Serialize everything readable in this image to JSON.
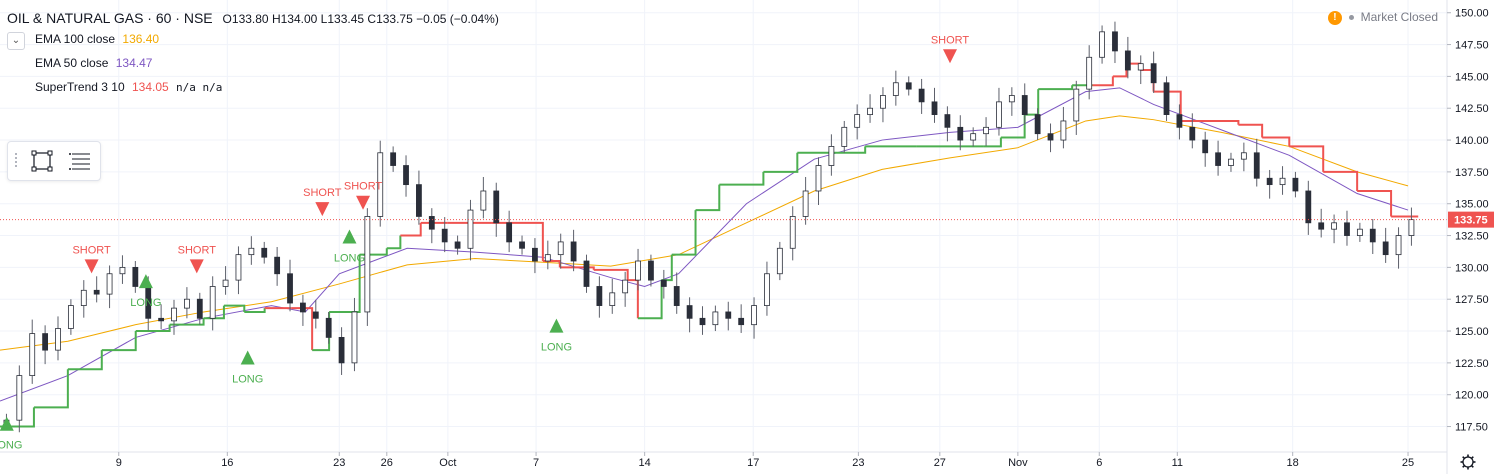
{
  "legend": {
    "title": "OIL & NATURAL GAS · 60 · NSE",
    "ohlc": {
      "o_label": "O",
      "o": "133.80",
      "h_label": "H",
      "h": "134.00",
      "l_label": "L",
      "l": "133.45",
      "c_label": "C",
      "c": "133.75",
      "change": "−0.05 (−0.04%)"
    },
    "indicators": [
      {
        "name": "EMA 100 close",
        "value": "136.40",
        "color": "#f2a900"
      },
      {
        "name": "EMA 50 close",
        "value": "134.47",
        "color": "#7e57c2"
      },
      {
        "name": "SuperTrend 3 10",
        "value": "134.05",
        "extra": "n/a n/a",
        "color": "#ef5350"
      }
    ],
    "collapse_icon": "chevron-down-icon"
  },
  "status": {
    "alert_icon": "!",
    "text": "Market Closed"
  },
  "toolbar": {
    "icons": [
      "rectangle-select-icon",
      "menu-lines-icon"
    ]
  },
  "colors": {
    "up": "#26a69a",
    "down": "#ef5350",
    "st_up": "#4caf50",
    "st_down": "#ef5350",
    "ema100": "#f2a900",
    "ema50": "#7e57c2",
    "grid": "#f0f3fa"
  },
  "chart_data": {
    "type": "line",
    "title": "OIL & NATURAL GAS · 60 · NSE",
    "ylim": [
      115.5,
      151
    ],
    "y_ticks": [
      117.5,
      120.0,
      122.5,
      125.0,
      127.5,
      130.0,
      132.5,
      135.0,
      137.5,
      140.0,
      142.5,
      145.0,
      147.5,
      150.0
    ],
    "x_tick_labels": [
      "9",
      "16",
      "23",
      "26",
      "Oct",
      "7",
      "14",
      "17",
      "23",
      "27",
      "Nov",
      "6",
      "11",
      "18",
      "25"
    ],
    "x_tick_positions": [
      35,
      67,
      100,
      114,
      132,
      158,
      190,
      222,
      253,
      277,
      300,
      324,
      347,
      381,
      415
    ],
    "x_range": [
      0,
      420
    ],
    "last_price": 133.75,
    "last_price_label": "133.75",
    "series": [
      {
        "name": "EMA 100 close",
        "x": [
          0,
          20,
          40,
          60,
          80,
          100,
          120,
          140,
          160,
          180,
          200,
          220,
          240,
          260,
          280,
          300,
          320,
          330,
          340,
          360,
          380,
          400,
          415
        ],
        "values": [
          123.5,
          124.2,
          125.5,
          126.5,
          127.3,
          128.7,
          130.2,
          130.7,
          130.4,
          130.1,
          131.0,
          133.5,
          136.0,
          137.7,
          138.6,
          139.4,
          141.5,
          141.9,
          141.6,
          140.6,
          139.5,
          137.5,
          136.4
        ]
      },
      {
        "name": "EMA 50 close",
        "x": [
          0,
          20,
          40,
          60,
          80,
          90,
          100,
          120,
          140,
          160,
          180,
          190,
          200,
          220,
          240,
          260,
          280,
          300,
          320,
          330,
          340,
          360,
          380,
          400,
          415
        ],
        "values": [
          119.5,
          121.5,
          124.5,
          126.0,
          127.0,
          126.5,
          129.5,
          131.5,
          131.2,
          130.8,
          129.2,
          128.5,
          129.5,
          135.0,
          138.5,
          140.0,
          140.6,
          141.0,
          143.8,
          144.1,
          142.8,
          140.8,
          138.8,
          135.8,
          134.5
        ]
      },
      {
        "name": "SuperTrend 3 10",
        "type": "step",
        "x": [
          0,
          10,
          20,
          30,
          40,
          50,
          60,
          66,
          72,
          78,
          86,
          92,
          97,
          106,
          114,
          118,
          124,
          132,
          145,
          160,
          165,
          175,
          185,
          188,
          195,
          198,
          205,
          212,
          225,
          235,
          255,
          270,
          290,
          295,
          302,
          306,
          316,
          322,
          328,
          332,
          336,
          340,
          348,
          365,
          372,
          380,
          390,
          400,
          410,
          418
        ],
        "values": [
          117.5,
          119.0,
          122.0,
          123.5,
          125.0,
          125.5,
          126.0,
          127.0,
          126.5,
          126.8,
          126.8,
          123.5,
          126.5,
          131.0,
          131.5,
          132.5,
          133.5,
          133.5,
          133.5,
          130.5,
          130.0,
          129.8,
          129.0,
          126.0,
          129.0,
          131.0,
          134.5,
          136.5,
          137.5,
          139.0,
          139.5,
          139.5,
          139.5,
          140.2,
          142.0,
          144.0,
          144.3,
          144.3,
          145.0,
          146.0,
          145.5,
          143.8,
          141.5,
          141.2,
          140.2,
          139.5,
          137.5,
          136.0,
          134.0,
          134.0
        ],
        "color_segments": [
          "up",
          "up",
          "up",
          "up",
          "up",
          "up",
          "up",
          "up",
          "up",
          "down",
          "down",
          "up",
          "up",
          "up",
          "up",
          "down",
          "down",
          "down",
          "down",
          "down",
          "down",
          "down",
          "down",
          "up",
          "up",
          "up",
          "up",
          "up",
          "up",
          "up",
          "up",
          "up",
          "up",
          "up",
          "up",
          "up",
          "up",
          "down",
          "down",
          "down",
          "down",
          "down",
          "down",
          "down",
          "down",
          "down",
          "down",
          "down",
          "down"
        ]
      }
    ],
    "candles_close": [
      118,
      121.5,
      124.8,
      123.5,
      125.2,
      127.0,
      128.2,
      127.9,
      129.5,
      130.0,
      128.5,
      126.0,
      125.8,
      126.8,
      127.5,
      126.0,
      128.5,
      129.0,
      131.0,
      131.5,
      130.8,
      129.5,
      127.2,
      126.5,
      126.0,
      124.5,
      122.5,
      126.5,
      134.0,
      139.0,
      138.0,
      136.5,
      134.0,
      133.0,
      132.0,
      131.5,
      134.5,
      136.0,
      133.5,
      132.0,
      131.5,
      130.5,
      131.0,
      132.0,
      130.5,
      128.5,
      127.0,
      128.0,
      129.0,
      130.5,
      129.0,
      128.5,
      127.0,
      126.0,
      125.5,
      126.5,
      126.0,
      125.5,
      127.0,
      129.5,
      131.5,
      134.0,
      136.0,
      138.0,
      139.5,
      141.0,
      142.0,
      142.5,
      143.5,
      144.5,
      144.0,
      143.0,
      142.0,
      141.0,
      140.0,
      140.5,
      141.0,
      143.0,
      143.5,
      142.0,
      140.5,
      140.0,
      141.5,
      144.0,
      146.5,
      148.5,
      147.0,
      145.5,
      146.0,
      144.5,
      142.0,
      141.0,
      140.0,
      139.0,
      138.0,
      138.5,
      139.0,
      137.0,
      136.5,
      137.0,
      136.0,
      133.5,
      133.0,
      133.5,
      132.5,
      133.0,
      132.0,
      131.0,
      132.5,
      133.75
    ],
    "signals": [
      {
        "type": "LONG",
        "x": 2,
        "price": 117.8
      },
      {
        "type": "SHORT",
        "x": 27,
        "price": 130.0
      },
      {
        "type": "LONG",
        "x": 43,
        "price": 129.0
      },
      {
        "type": "SHORT",
        "x": 58,
        "price": 130.0
      },
      {
        "type": "LONG",
        "x": 73,
        "price": 123.0
      },
      {
        "type": "SHORT",
        "x": 95,
        "price": 134.5
      },
      {
        "type": "LONG",
        "x": 103,
        "price": 132.5
      },
      {
        "type": "SHORT",
        "x": 107,
        "price": 135.0
      },
      {
        "type": "LONG",
        "x": 164,
        "price": 125.5
      },
      {
        "type": "SHORT",
        "x": 280,
        "price": 146.5
      }
    ]
  }
}
